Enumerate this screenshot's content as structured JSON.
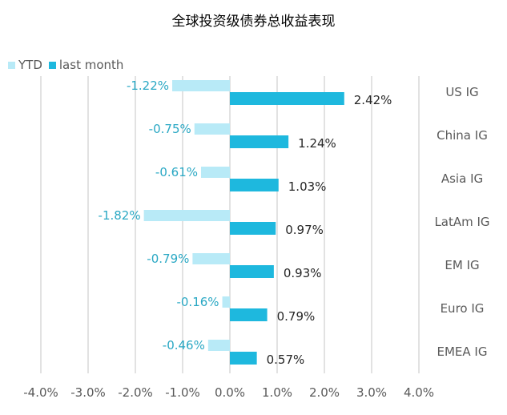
{
  "title": "全球投资级债券总收益表现",
  "colors": {
    "ytd": "#b8eaf7",
    "last_month": "#1eb8de",
    "ytd_label": "#2aa8c4",
    "value_label": "#262626",
    "grid": "#d9d9d9",
    "axis_text": "#595959"
  },
  "legend": [
    {
      "label": "YTD",
      "key": "ytd"
    },
    {
      "label": "last month",
      "key": "last_month"
    }
  ],
  "chart_data": {
    "type": "bar",
    "orientation": "horizontal",
    "title": "全球投资级债券总收益表现",
    "categories": [
      "US IG",
      "China IG",
      "Asia IG",
      "LatAm IG",
      "EM IG",
      "Euro IG",
      "EMEA IG"
    ],
    "series": [
      {
        "name": "YTD",
        "values": [
          -1.22,
          -0.75,
          -0.61,
          -1.82,
          -0.79,
          -0.16,
          -0.46
        ],
        "labels": [
          "-1.22%",
          "-0.75%",
          "-0.61%",
          "-1.82%",
          "-0.79%",
          "-0.16%",
          "-0.46%"
        ]
      },
      {
        "name": "last month",
        "values": [
          2.42,
          1.24,
          1.03,
          0.97,
          0.93,
          0.79,
          0.57
        ],
        "labels": [
          "2.42%",
          "1.24%",
          "1.03%",
          "0.97%",
          "0.93%",
          "0.79%",
          "0.57%"
        ]
      }
    ],
    "xlim": [
      -4.0,
      4.0
    ],
    "xticks": [
      -4.0,
      -3.0,
      -2.0,
      -1.0,
      0.0,
      1.0,
      2.0,
      3.0,
      4.0
    ],
    "xtick_labels": [
      "-4.0%",
      "-3.0%",
      "-2.0%",
      "-1.0%",
      "0.0%",
      "1.0%",
      "2.0%",
      "3.0%",
      "4.0%"
    ],
    "grid": "vertical",
    "legend_position": "top-left"
  }
}
